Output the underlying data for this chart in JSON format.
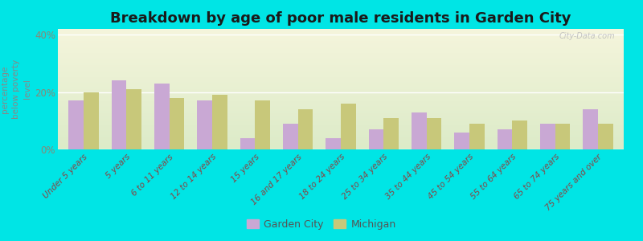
{
  "title": "Breakdown by age of poor male residents in Garden City",
  "categories": [
    "Under 5 years",
    "5 years",
    "6 to 11 years",
    "12 to 14 years",
    "15 years",
    "16 and 17 years",
    "18 to 24 years",
    "25 to 34 years",
    "35 to 44 years",
    "45 to 54 years",
    "55 to 64 years",
    "65 to 74 years",
    "75 years and over"
  ],
  "garden_city": [
    17,
    24,
    23,
    17,
    4,
    9,
    4,
    7,
    13,
    6,
    7,
    9,
    14
  ],
  "michigan": [
    20,
    21,
    18,
    19,
    17,
    14,
    16,
    11,
    11,
    9,
    10,
    9,
    9
  ],
  "garden_city_color": "#c9a8d4",
  "michigan_color": "#c8c87a",
  "outer_bg": "#00e5e5",
  "plot_bg": "#eef5e5",
  "ylabel": "percentage\nbelow poverty\nlevel",
  "ylim": [
    0,
    42
  ],
  "yticks": [
    0,
    20,
    40
  ],
  "ytick_labels": [
    "0%",
    "20%",
    "40%"
  ],
  "bar_width": 0.35,
  "title_fontsize": 13,
  "tick_color": "#888877",
  "watermark": "City-Data.com"
}
